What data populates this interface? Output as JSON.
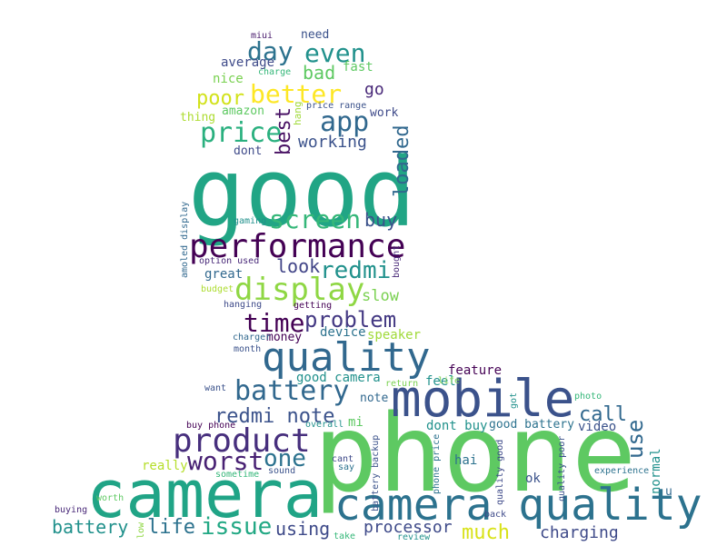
{
  "words": [
    {
      "text": "phone",
      "color": "#5ec962"
    },
    {
      "text": "camera",
      "color": "#20a486"
    },
    {
      "text": "good",
      "color": "#21a585"
    },
    {
      "text": "mobile",
      "color": "#3b528b"
    },
    {
      "text": "quality",
      "color": "#31688e"
    },
    {
      "text": "camera quality",
      "color": "#2c728e"
    },
    {
      "text": "performance",
      "color": "#440154"
    },
    {
      "text": "product",
      "color": "#472f7d"
    },
    {
      "text": "display",
      "color": "#8fd744"
    },
    {
      "text": "battery",
      "color": "#31688e"
    },
    {
      "text": "screen",
      "color": "#35b779"
    },
    {
      "text": "price",
      "color": "#2ab07f"
    },
    {
      "text": "better",
      "color": "#fde725"
    },
    {
      "text": "day",
      "color": "#2c728e"
    },
    {
      "text": "even",
      "color": "#21918c"
    },
    {
      "text": "app",
      "color": "#31688e"
    },
    {
      "text": "time",
      "color": "#440154"
    },
    {
      "text": "problem",
      "color": "#443983"
    },
    {
      "text": "redmi",
      "color": "#21918c"
    },
    {
      "text": "redmi note",
      "color": "#3b528b"
    },
    {
      "text": "worst",
      "color": "#482173"
    },
    {
      "text": "one",
      "color": "#2c728e"
    },
    {
      "text": "issue",
      "color": "#22a884"
    },
    {
      "text": "life",
      "color": "#2c728e"
    },
    {
      "text": "battery",
      "color": "#21918c"
    },
    {
      "text": "using",
      "color": "#3e4a89"
    },
    {
      "text": "processor",
      "color": "#3e4a89"
    },
    {
      "text": "much",
      "color": "#d8e219"
    },
    {
      "text": "charging",
      "color": "#3e4a89"
    },
    {
      "text": "call",
      "color": "#31688e"
    },
    {
      "text": "use",
      "color": "#31688e"
    },
    {
      "text": "buy",
      "color": "#3b528b"
    },
    {
      "text": "look",
      "color": "#414487"
    },
    {
      "text": "slow",
      "color": "#7ad151"
    },
    {
      "text": "poor",
      "color": "#d2e21b"
    },
    {
      "text": "bad",
      "color": "#5ec962"
    },
    {
      "text": "go",
      "color": "#482878"
    },
    {
      "text": "working",
      "color": "#3b528b"
    },
    {
      "text": "best",
      "color": "#471063"
    },
    {
      "text": "loaded",
      "color": "#31688e"
    },
    {
      "text": "average",
      "color": "#3e4a89"
    },
    {
      "text": "fast",
      "color": "#5ec962"
    },
    {
      "text": "nice",
      "color": "#7ad151"
    },
    {
      "text": "amazon",
      "color": "#5ec962"
    },
    {
      "text": "thing",
      "color": "#addc30"
    },
    {
      "text": "dont",
      "color": "#3e4a89"
    },
    {
      "text": "need",
      "color": "#3b528b"
    },
    {
      "text": "miui",
      "color": "#481a6c"
    },
    {
      "text": "charge",
      "color": "#35b779"
    },
    {
      "text": "price range",
      "color": "#3b528b"
    },
    {
      "text": "hang",
      "color": "#a0da39"
    },
    {
      "text": "work",
      "color": "#3e4a89"
    },
    {
      "text": "amoled display",
      "color": "#31688e"
    },
    {
      "text": "gaming",
      "color": "#21918c"
    },
    {
      "text": "option used",
      "color": "#482878"
    },
    {
      "text": "great",
      "color": "#31688e"
    },
    {
      "text": "budget",
      "color": "#addc30"
    },
    {
      "text": "bought",
      "color": "#482878"
    },
    {
      "text": "hanging",
      "color": "#3e4a89"
    },
    {
      "text": "getting",
      "color": "#440154"
    },
    {
      "text": "money",
      "color": "#440154"
    },
    {
      "text": "device",
      "color": "#2c728e"
    },
    {
      "text": "speaker",
      "color": "#a0da39"
    },
    {
      "text": "charger",
      "color": "#31688e"
    },
    {
      "text": "month",
      "color": "#3b528b"
    },
    {
      "text": "good camera",
      "color": "#21918c"
    },
    {
      "text": "note",
      "color": "#31688e"
    },
    {
      "text": "feature",
      "color": "#440154"
    },
    {
      "text": "feel",
      "color": "#21918c"
    },
    {
      "text": "return",
      "color": "#7ad151"
    },
    {
      "text": "life",
      "color": "#7ad151"
    },
    {
      "text": "want",
      "color": "#3b528b"
    },
    {
      "text": "mi",
      "color": "#5ec962"
    },
    {
      "text": "overall",
      "color": "#21918c"
    },
    {
      "text": "buy phone",
      "color": "#440154"
    },
    {
      "text": "dont buy",
      "color": "#21918c"
    },
    {
      "text": "good battery",
      "color": "#2c728e"
    },
    {
      "text": "video",
      "color": "#3b528b"
    },
    {
      "text": "hai",
      "color": "#2c728e"
    },
    {
      "text": "cant",
      "color": "#3e4a89"
    },
    {
      "text": "say",
      "color": "#2c728e"
    },
    {
      "text": "really",
      "color": "#b5de2b"
    },
    {
      "text": "sometime",
      "color": "#35b779"
    },
    {
      "text": "sound",
      "color": "#3b528b"
    },
    {
      "text": "battery backup",
      "color": "#3b528b"
    },
    {
      "text": "phone price",
      "color": "#2c728e"
    },
    {
      "text": "quality good",
      "color": "#3e4a89"
    },
    {
      "text": "quality poor",
      "color": "#3b528b"
    },
    {
      "text": "got",
      "color": "#21918c"
    },
    {
      "text": "photo",
      "color": "#35b779"
    },
    {
      "text": "experience",
      "color": "#2c728e"
    },
    {
      "text": "ok",
      "color": "#3b528b"
    },
    {
      "text": "normal",
      "color": "#21918c"
    },
    {
      "text": "u",
      "color": "#31688e"
    },
    {
      "text": "worth",
      "color": "#5ec962"
    },
    {
      "text": "buying",
      "color": "#482878"
    },
    {
      "text": "low",
      "color": "#8fd744"
    },
    {
      "text": "take",
      "color": "#35b779"
    },
    {
      "text": "back",
      "color": "#3e4a89"
    },
    {
      "text": "review",
      "color": "#21918c"
    }
  ]
}
